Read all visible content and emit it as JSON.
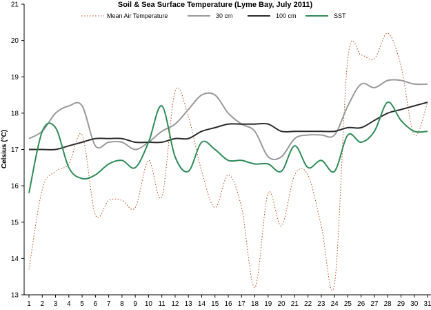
{
  "chart_data": {
    "type": "line",
    "title": "Soil & Sea Surface Temperature (Lyme Bay, July 2011)",
    "xlabel": "",
    "ylabel": "Celsius (°C)",
    "x": [
      1,
      2,
      3,
      4,
      5,
      6,
      7,
      8,
      9,
      10,
      11,
      12,
      13,
      14,
      15,
      16,
      17,
      18,
      19,
      20,
      21,
      22,
      23,
      24,
      25,
      26,
      27,
      28,
      29,
      30,
      31
    ],
    "xlim": [
      1,
      31
    ],
    "ylim": [
      13,
      21
    ],
    "yticks": [
      13,
      14,
      15,
      16,
      17,
      18,
      19,
      20,
      21
    ],
    "grid": false,
    "legend_position": "top",
    "series": [
      {
        "name": "Mean Air Temperature",
        "color": "#b8460f",
        "style": "dotted",
        "values": [
          13.7,
          15.9,
          16.4,
          16.6,
          17.4,
          15.2,
          15.6,
          15.6,
          15.4,
          16.7,
          15.7,
          18.6,
          17.9,
          16.4,
          15.4,
          16.3,
          15.4,
          13.2,
          15.8,
          14.9,
          16.3,
          16.3,
          14.9,
          13.3,
          19.5,
          19.6,
          19.5,
          20.2,
          19.3,
          17.4,
          18.3
        ]
      },
      {
        "name": "30 cm",
        "color": "#999999",
        "style": "solid",
        "values": [
          17.3,
          17.5,
          18.0,
          18.2,
          18.2,
          17.1,
          17.2,
          17.2,
          17.0,
          17.2,
          17.5,
          17.7,
          18.1,
          18.5,
          18.5,
          18.0,
          17.7,
          17.5,
          16.8,
          16.8,
          17.3,
          17.4,
          17.4,
          17.4,
          18.2,
          18.8,
          18.7,
          18.9,
          18.9,
          18.8,
          18.8
        ]
      },
      {
        "name": "100 cm",
        "color": "#2b2b2b",
        "style": "solid",
        "values": [
          17.0,
          17.0,
          17.0,
          17.1,
          17.2,
          17.3,
          17.3,
          17.3,
          17.2,
          17.2,
          17.2,
          17.3,
          17.3,
          17.5,
          17.6,
          17.7,
          17.7,
          17.7,
          17.7,
          17.5,
          17.5,
          17.5,
          17.5,
          17.5,
          17.6,
          17.6,
          17.8,
          18.0,
          18.1,
          18.2,
          18.3
        ]
      },
      {
        "name": "SST",
        "color": "#2e8b57",
        "style": "solid",
        "values": [
          15.8,
          17.5,
          17.6,
          16.5,
          16.2,
          16.3,
          16.6,
          16.7,
          16.5,
          17.2,
          18.2,
          16.8,
          16.4,
          17.2,
          17.0,
          16.7,
          16.7,
          16.6,
          16.6,
          16.4,
          17.1,
          16.5,
          16.7,
          16.4,
          17.4,
          17.2,
          17.5,
          18.3,
          17.8,
          17.5,
          17.5
        ]
      }
    ]
  }
}
